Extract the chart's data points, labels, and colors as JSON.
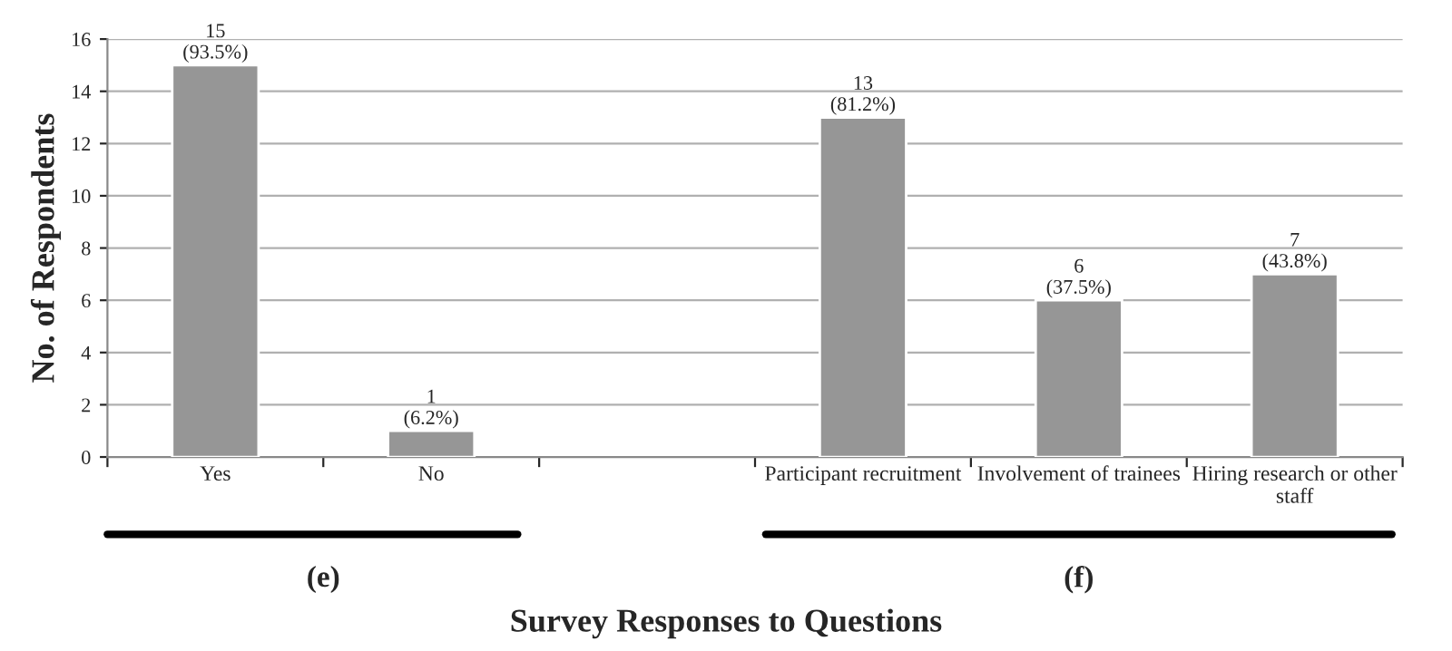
{
  "chart_data": {
    "type": "bar",
    "xlabel": "Survey Responses to Questions",
    "ylabel": "No. of Respondents",
    "categories": [
      "Yes",
      "No",
      null,
      "Participant recruitment",
      "Involvement of trainees",
      "Hiring research or other staff"
    ],
    "values": [
      15,
      1,
      null,
      13,
      6,
      7
    ],
    "value_labels": [
      "15\n(93.5%)",
      "1\n(6.2%)",
      null,
      "13\n(81.2%)",
      "6\n(37.5%)",
      "7\n(43.8%)"
    ],
    "color": "#969696",
    "ylim": [
      0,
      16
    ],
    "yticks": [
      0,
      2,
      4,
      6,
      8,
      10,
      12,
      14,
      16
    ],
    "grid": "y",
    "annotations": [
      "(e)",
      "(f)"
    ]
  }
}
